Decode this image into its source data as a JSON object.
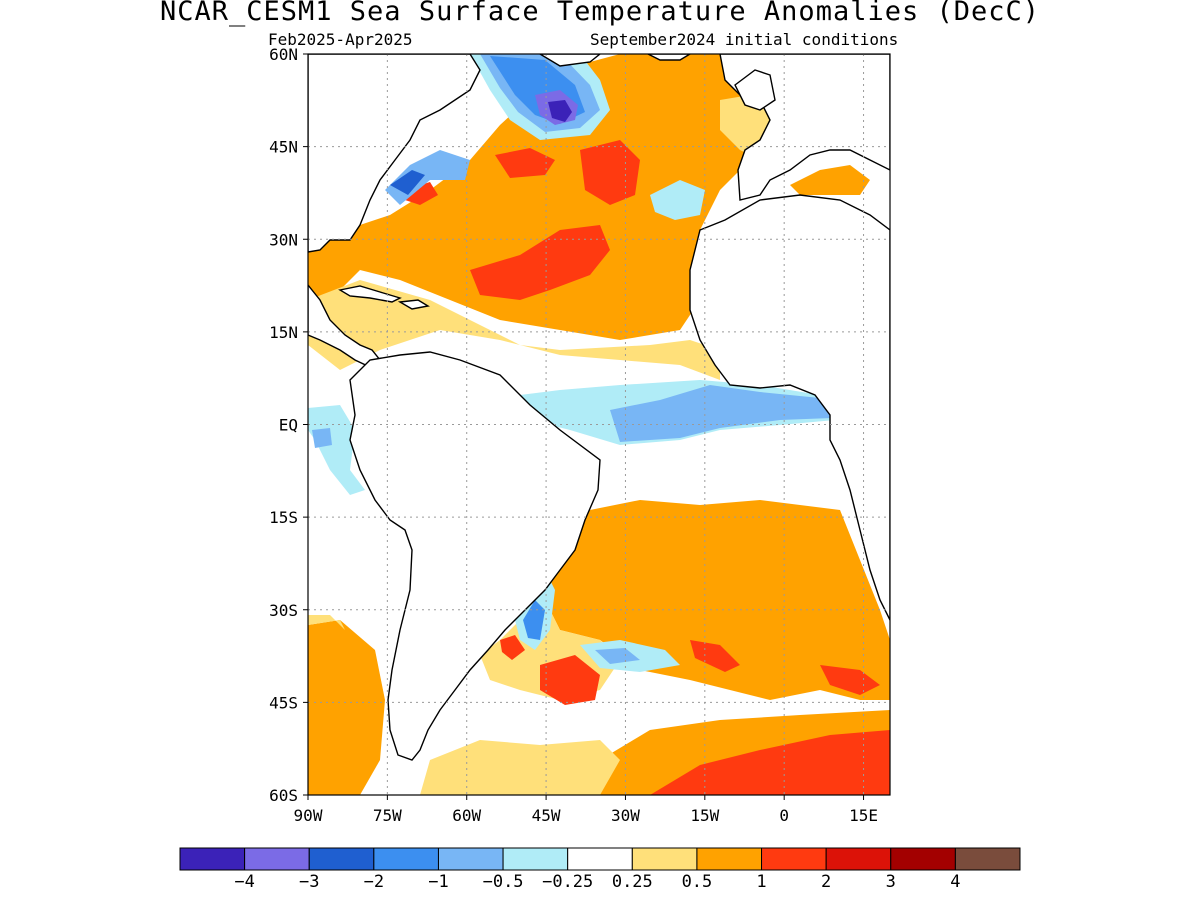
{
  "title": "NCAR_CESM1 Sea Surface Temperature Anomalies (DecC)",
  "subtitle_left": "Feb2025-Apr2025",
  "subtitle_right": "September2024 initial conditions",
  "map": {
    "lat_range": [
      -60,
      60
    ],
    "lon_range": [
      -90,
      20
    ],
    "lat_ticks": [
      {
        "value": 60,
        "label": "60N"
      },
      {
        "value": 45,
        "label": "45N"
      },
      {
        "value": 30,
        "label": "30N"
      },
      {
        "value": 15,
        "label": "15N"
      },
      {
        "value": 0,
        "label": "EQ"
      },
      {
        "value": -15,
        "label": "15S"
      },
      {
        "value": -30,
        "label": "30S"
      },
      {
        "value": -45,
        "label": "45S"
      },
      {
        "value": -60,
        "label": "60S"
      }
    ],
    "lon_ticks": [
      {
        "value": -90,
        "label": "90W"
      },
      {
        "value": -75,
        "label": "75W"
      },
      {
        "value": -60,
        "label": "60W"
      },
      {
        "value": -45,
        "label": "45W"
      },
      {
        "value": -30,
        "label": "30W"
      },
      {
        "value": -15,
        "label": "15W"
      },
      {
        "value": 0,
        "label": "0"
      },
      {
        "value": 15,
        "label": "15E"
      }
    ],
    "grid": true
  },
  "colorbar": {
    "colors": [
      "#3b22b8",
      "#7b6be6",
      "#1f5fd0",
      "#3c8ff0",
      "#78b6f5",
      "#b0ecf7",
      "#ffffff",
      "#ffe07a",
      "#ffa200",
      "#ff3a10",
      "#dc1208",
      "#a30000",
      "#7a4c3c"
    ],
    "labels": [
      "-4",
      "-3",
      "-2",
      "-1",
      "-0.5",
      "-0.25",
      "0.25",
      "0.5",
      "1",
      "2",
      "3",
      "4"
    ]
  },
  "anomaly_fields": [
    {
      "level": "0.25",
      "color": "#ffe07a"
    },
    {
      "level": "0.5",
      "color": "#ffa200"
    },
    {
      "level": "1",
      "color": "#ff3a10"
    },
    {
      "level": "-0.25",
      "color": "#b0ecf7"
    },
    {
      "level": "-0.5",
      "color": "#78b6f5"
    },
    {
      "level": "-1",
      "color": "#3c8ff0"
    },
    {
      "level": "-2",
      "color": "#1f5fd0"
    },
    {
      "level": "-3",
      "color": "#7b6be6"
    },
    {
      "level": "-4",
      "color": "#3b22b8"
    }
  ]
}
